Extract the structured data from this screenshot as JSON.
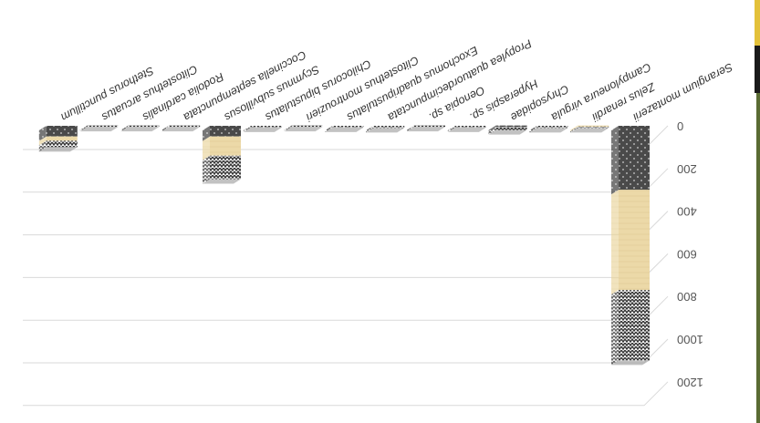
{
  "chart_data": {
    "type": "bar",
    "stacked": true,
    "orientation": "rotated-180",
    "ylim": [
      0,
      1200
    ],
    "yticks": [
      0,
      200,
      400,
      600,
      800,
      1000,
      1200
    ],
    "grid": true,
    "categories": [
      "Serangium montazerii",
      "Zelus renardii",
      "Campyloneura virgula",
      "Chrysopidae",
      "Hyperaspis sp.",
      "Oenopia sp.",
      "Propylea quatuordecimpunctata",
      "Exochomus quadripustulatus",
      "Clitostethus montrouzieri",
      "Chilocorus bipustulatus",
      "Scymnus subvillosus",
      "Coccinella septempunctata",
      "Rodolia cardinalis",
      "Clitostethus arcuatus",
      "Stethorus punctillum"
    ],
    "series": [
      {
        "pattern": "dots",
        "color": "#4d4d4d",
        "values": [
          300,
          0,
          0,
          5,
          0,
          0,
          0,
          0,
          0,
          0,
          50,
          0,
          0,
          0,
          50
        ]
      },
      {
        "pattern": "paper",
        "color": "#ecd9a8",
        "values": [
          470,
          5,
          0,
          0,
          0,
          0,
          0,
          0,
          0,
          0,
          90,
          0,
          0,
          0,
          20
        ]
      },
      {
        "pattern": "zigzag",
        "color": "#8a8a8a",
        "values": [
          330,
          5,
          10,
          15,
          8,
          5,
          10,
          8,
          5,
          8,
          110,
          5,
          5,
          5,
          30
        ]
      }
    ]
  },
  "colors": {
    "edge_dark": "#1a1a1a",
    "edge_yellow": "#e3c13a"
  }
}
